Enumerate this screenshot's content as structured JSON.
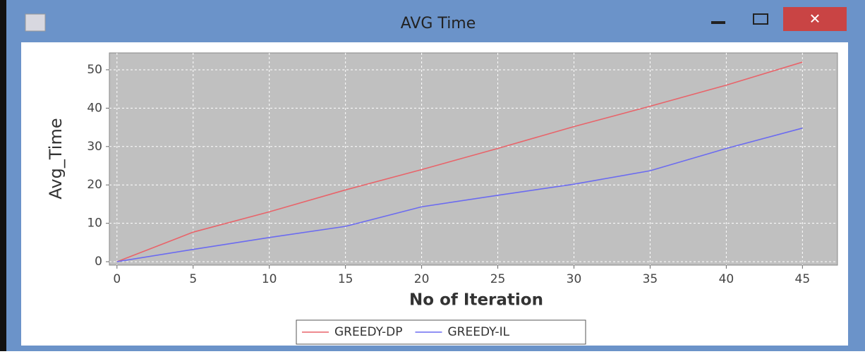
{
  "chart_data": {
    "type": "line",
    "title": "AVG Time",
    "x_label": "No of Iteration",
    "y_label": "Avg_Time",
    "x": [
      0,
      5,
      10,
      15,
      20,
      25,
      30,
      35,
      40,
      45
    ],
    "series": [
      {
        "name": "GREEDY-DP",
        "color": "#e8646a",
        "values": [
          0,
          7.7,
          13,
          18.7,
          24,
          29.5,
          35.2,
          40.5,
          46,
          52
        ]
      },
      {
        "name": "GREEDY-IL",
        "color": "#6b6bf0",
        "values": [
          0,
          3.2,
          6.3,
          9.2,
          14.3,
          17.3,
          20.2,
          23.7,
          29.5,
          34.8
        ]
      }
    ],
    "xlim": [
      -0.5,
      47.3
    ],
    "xticks": [
      0,
      5,
      10,
      15,
      20,
      25,
      30,
      35,
      40,
      45
    ],
    "ylim": [
      -0.9,
      54.4
    ],
    "yticks": [
      0,
      10,
      20,
      30,
      40,
      50
    ],
    "grid": true,
    "legend": "bottom"
  }
}
